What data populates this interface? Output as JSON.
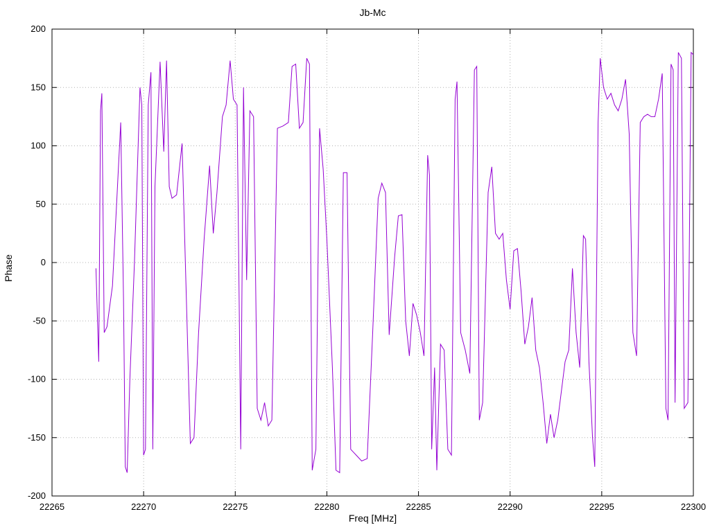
{
  "chart_data": {
    "type": "line",
    "title": "Jb-Mc",
    "xlabel": "Freq [MHz]",
    "ylabel": "Phase",
    "xlim": [
      22265,
      22300
    ],
    "ylim": [
      -200,
      200
    ],
    "x_ticks": [
      22265,
      22270,
      22275,
      22280,
      22285,
      22290,
      22295,
      22300
    ],
    "y_ticks": [
      -200,
      -150,
      -100,
      -50,
      0,
      50,
      100,
      150,
      200
    ],
    "grid": true,
    "line_color": "#9400d3",
    "grid_color": "#b0b0b0",
    "border_color": "#000000",
    "series_name": "Jb-Mc phase",
    "points": [
      [
        22267.4,
        -5
      ],
      [
        22267.55,
        -85
      ],
      [
        22267.65,
        130
      ],
      [
        22267.72,
        145
      ],
      [
        22267.85,
        -60
      ],
      [
        22268.0,
        -55
      ],
      [
        22268.3,
        -20
      ],
      [
        22268.75,
        120
      ],
      [
        22268.9,
        -30
      ],
      [
        22269.0,
        -175
      ],
      [
        22269.1,
        -180
      ],
      [
        22269.25,
        -100
      ],
      [
        22269.5,
        0
      ],
      [
        22269.8,
        150
      ],
      [
        22269.9,
        135
      ],
      [
        22270.0,
        -165
      ],
      [
        22270.1,
        -160
      ],
      [
        22270.25,
        135
      ],
      [
        22270.4,
        163
      ],
      [
        22270.5,
        -160
      ],
      [
        22270.62,
        65
      ],
      [
        22270.9,
        172
      ],
      [
        22271.1,
        95
      ],
      [
        22271.25,
        173
      ],
      [
        22271.4,
        65
      ],
      [
        22271.55,
        55
      ],
      [
        22271.8,
        58
      ],
      [
        22272.1,
        102
      ],
      [
        22272.35,
        -40
      ],
      [
        22272.55,
        -155
      ],
      [
        22272.75,
        -150
      ],
      [
        22273.0,
        -60
      ],
      [
        22273.3,
        20
      ],
      [
        22273.6,
        83
      ],
      [
        22273.8,
        25
      ],
      [
        22274.0,
        60
      ],
      [
        22274.3,
        125
      ],
      [
        22274.5,
        135
      ],
      [
        22274.72,
        173
      ],
      [
        22274.9,
        140
      ],
      [
        22275.1,
        135
      ],
      [
        22275.3,
        -160
      ],
      [
        22275.45,
        150
      ],
      [
        22275.62,
        -15
      ],
      [
        22275.8,
        130
      ],
      [
        22276.0,
        125
      ],
      [
        22276.2,
        -125
      ],
      [
        22276.4,
        -135
      ],
      [
        22276.6,
        -120
      ],
      [
        22276.8,
        -140
      ],
      [
        22277.0,
        -135
      ],
      [
        22277.3,
        115
      ],
      [
        22277.6,
        117
      ],
      [
        22277.9,
        120
      ],
      [
        22278.1,
        168
      ],
      [
        22278.3,
        170
      ],
      [
        22278.5,
        115
      ],
      [
        22278.7,
        120
      ],
      [
        22278.9,
        175
      ],
      [
        22279.05,
        170
      ],
      [
        22279.2,
        -178
      ],
      [
        22279.4,
        -160
      ],
      [
        22279.6,
        115
      ],
      [
        22279.8,
        80
      ],
      [
        22280.0,
        20
      ],
      [
        22280.3,
        -90
      ],
      [
        22280.5,
        -178
      ],
      [
        22280.7,
        -180
      ],
      [
        22280.9,
        77
      ],
      [
        22281.1,
        77
      ],
      [
        22281.3,
        -160
      ],
      [
        22281.6,
        -165
      ],
      [
        22281.9,
        -170
      ],
      [
        22282.2,
        -168
      ],
      [
        22282.5,
        -60
      ],
      [
        22282.8,
        55
      ],
      [
        22283.0,
        68
      ],
      [
        22283.2,
        60
      ],
      [
        22283.4,
        -62
      ],
      [
        22283.7,
        5
      ],
      [
        22283.9,
        40
      ],
      [
        22284.1,
        41
      ],
      [
        22284.3,
        -50
      ],
      [
        22284.5,
        -80
      ],
      [
        22284.7,
        -35
      ],
      [
        22284.9,
        -45
      ],
      [
        22285.1,
        -60
      ],
      [
        22285.3,
        -80
      ],
      [
        22285.5,
        92
      ],
      [
        22285.6,
        75
      ],
      [
        22285.72,
        -160
      ],
      [
        22285.88,
        -90
      ],
      [
        22286.0,
        -178
      ],
      [
        22286.2,
        -70
      ],
      [
        22286.4,
        -75
      ],
      [
        22286.6,
        -160
      ],
      [
        22286.8,
        -165
      ],
      [
        22287.0,
        140
      ],
      [
        22287.1,
        155
      ],
      [
        22287.3,
        -60
      ],
      [
        22287.55,
        -75
      ],
      [
        22287.8,
        -95
      ],
      [
        22288.05,
        165
      ],
      [
        22288.18,
        168
      ],
      [
        22288.32,
        -135
      ],
      [
        22288.5,
        -120
      ],
      [
        22288.8,
        60
      ],
      [
        22289.0,
        82
      ],
      [
        22289.2,
        25
      ],
      [
        22289.4,
        20
      ],
      [
        22289.6,
        25
      ],
      [
        22289.8,
        -15
      ],
      [
        22290.0,
        -40
      ],
      [
        22290.2,
        10
      ],
      [
        22290.4,
        12
      ],
      [
        22290.6,
        -25
      ],
      [
        22290.8,
        -70
      ],
      [
        22291.0,
        -55
      ],
      [
        22291.2,
        -30
      ],
      [
        22291.4,
        -75
      ],
      [
        22291.6,
        -90
      ],
      [
        22291.8,
        -120
      ],
      [
        22292.0,
        -155
      ],
      [
        22292.2,
        -130
      ],
      [
        22292.4,
        -150
      ],
      [
        22292.6,
        -135
      ],
      [
        22292.8,
        -110
      ],
      [
        22293.0,
        -85
      ],
      [
        22293.2,
        -75
      ],
      [
        22293.4,
        -5
      ],
      [
        22293.6,
        -60
      ],
      [
        22293.8,
        -90
      ],
      [
        22294.0,
        23
      ],
      [
        22294.12,
        20
      ],
      [
        22294.3,
        -85
      ],
      [
        22294.5,
        -150
      ],
      [
        22294.62,
        -175
      ],
      [
        22294.8,
        120
      ],
      [
        22294.92,
        175
      ],
      [
        22295.1,
        150
      ],
      [
        22295.3,
        140
      ],
      [
        22295.5,
        145
      ],
      [
        22295.7,
        135
      ],
      [
        22295.9,
        130
      ],
      [
        22296.1,
        140
      ],
      [
        22296.3,
        157
      ],
      [
        22296.5,
        110
      ],
      [
        22296.7,
        -60
      ],
      [
        22296.9,
        -80
      ],
      [
        22297.1,
        120
      ],
      [
        22297.3,
        125
      ],
      [
        22297.5,
        127
      ],
      [
        22297.7,
        125
      ],
      [
        22297.9,
        125
      ],
      [
        22298.1,
        140
      ],
      [
        22298.3,
        162
      ],
      [
        22298.5,
        -125
      ],
      [
        22298.62,
        -135
      ],
      [
        22298.78,
        170
      ],
      [
        22298.9,
        165
      ],
      [
        22299.0,
        -120
      ],
      [
        22299.18,
        180
      ],
      [
        22299.35,
        175
      ],
      [
        22299.5,
        -125
      ],
      [
        22299.7,
        -120
      ],
      [
        22299.88,
        180
      ],
      [
        22300.0,
        178
      ]
    ]
  }
}
